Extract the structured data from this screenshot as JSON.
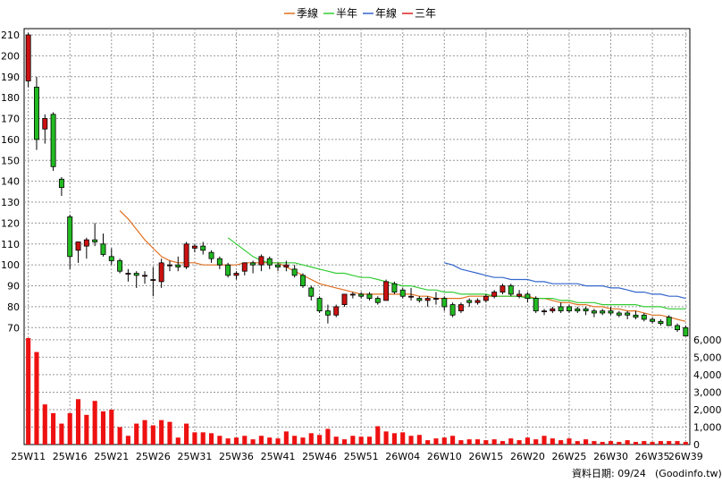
{
  "legend": [
    {
      "label": "季線",
      "color": "#e07020"
    },
    {
      "label": "半年",
      "color": "#33cc33"
    },
    {
      "label": "年線",
      "color": "#3366cc"
    },
    {
      "label": "三年",
      "color": "#dd2222"
    }
  ],
  "footer": {
    "date_label": "資料日期: 09/24",
    "source": "(Goodinfo.tw)"
  },
  "chart_data": {
    "type": "candlestick",
    "price_axis": {
      "range": [
        65,
        213
      ],
      "ticks": [
        70,
        80,
        90,
        100,
        110,
        120,
        130,
        140,
        150,
        160,
        170,
        180,
        190,
        200,
        210
      ]
    },
    "volume_axis": {
      "range": [
        0,
        6200
      ],
      "ticks": [
        0,
        1000,
        2000,
        3000,
        4000,
        5000,
        6000
      ],
      "tick_labels": [
        "0",
        "1,000",
        "2,000",
        "3,000",
        "4,000",
        "5,000",
        "6,000"
      ]
    },
    "x_tick_labels": [
      {
        "label": "25W11",
        "index": 0
      },
      {
        "label": "25W16",
        "index": 5
      },
      {
        "label": "25W21",
        "index": 10
      },
      {
        "label": "25W26",
        "index": 15
      },
      {
        "label": "25W31",
        "index": 20
      },
      {
        "label": "25W36",
        "index": 25
      },
      {
        "label": "25W41",
        "index": 30
      },
      {
        "label": "25W46",
        "index": 35
      },
      {
        "label": "25W51",
        "index": 40
      },
      {
        "label": "26W04",
        "index": 45
      },
      {
        "label": "26W10",
        "index": 50
      },
      {
        "label": "26W15",
        "index": 55
      },
      {
        "label": "26W20",
        "index": 60
      },
      {
        "label": "26W25",
        "index": 65
      },
      {
        "label": "26W30",
        "index": 70
      },
      {
        "label": "26W35",
        "index": 75
      },
      {
        "label": "26W39",
        "index": 79
      }
    ],
    "grid": true,
    "candles": [
      [
        188,
        211,
        185,
        210
      ],
      [
        185,
        190,
        155,
        160
      ],
      [
        165,
        172,
        158,
        170
      ],
      [
        172,
        173,
        145,
        147
      ],
      [
        141,
        142,
        133,
        137
      ],
      [
        123,
        124,
        98,
        104
      ],
      [
        107,
        111,
        101,
        111
      ],
      [
        109,
        113,
        103,
        112
      ],
      [
        112,
        120,
        109,
        111
      ],
      [
        110,
        115,
        104,
        105
      ],
      [
        104,
        108,
        100,
        102
      ],
      [
        102,
        103,
        96,
        97
      ],
      [
        96,
        98,
        92,
        96
      ],
      [
        96,
        97,
        89,
        95
      ],
      [
        95,
        97,
        91,
        95
      ],
      [
        93,
        99,
        85,
        93
      ],
      [
        92,
        103,
        89,
        101
      ],
      [
        100,
        102,
        97,
        100
      ],
      [
        100,
        104,
        97,
        99
      ],
      [
        99,
        111,
        98,
        110
      ],
      [
        108,
        110,
        106,
        109
      ],
      [
        109,
        111,
        105,
        107
      ],
      [
        106,
        107,
        101,
        103
      ],
      [
        103,
        104,
        98,
        100
      ],
      [
        100,
        101,
        94,
        95
      ],
      [
        95,
        97,
        93,
        96
      ],
      [
        97,
        101,
        95,
        101
      ],
      [
        101,
        102,
        96,
        100
      ],
      [
        100,
        105,
        97,
        104
      ],
      [
        103,
        104,
        98,
        100
      ],
      [
        100,
        101,
        97,
        99
      ],
      [
        99,
        102,
        97,
        100
      ],
      [
        98,
        100,
        94,
        95
      ],
      [
        95,
        96,
        89,
        90
      ],
      [
        89,
        90,
        83,
        85
      ],
      [
        84,
        85,
        77,
        78
      ],
      [
        78,
        81,
        72,
        76
      ],
      [
        76,
        81,
        75,
        80
      ],
      [
        81,
        86,
        80,
        86
      ],
      [
        86,
        87,
        84,
        86
      ],
      [
        86,
        87,
        84,
        85
      ],
      [
        86,
        87,
        83,
        84
      ],
      [
        84,
        85,
        81,
        82
      ],
      [
        83,
        93,
        83,
        92
      ],
      [
        91,
        92,
        86,
        87
      ],
      [
        88,
        89,
        84,
        85
      ],
      [
        85,
        89,
        83,
        85
      ],
      [
        84,
        85,
        82,
        83
      ],
      [
        83,
        85,
        80,
        84
      ],
      [
        84,
        87,
        81,
        84
      ],
      [
        84,
        85,
        78,
        80
      ],
      [
        81,
        82,
        75,
        76
      ],
      [
        78,
        82,
        77,
        81
      ],
      [
        83,
        84,
        80,
        82
      ],
      [
        82,
        84,
        81,
        83
      ],
      [
        83,
        86,
        82,
        85
      ],
      [
        85,
        88,
        84,
        87
      ],
      [
        87,
        91,
        86,
        90
      ],
      [
        90,
        91,
        85,
        86
      ],
      [
        85,
        88,
        84,
        86
      ],
      [
        86,
        87,
        82,
        84
      ],
      [
        84,
        85,
        77,
        78
      ],
      [
        78,
        79,
        76,
        78
      ],
      [
        78,
        80,
        77,
        79
      ],
      [
        80,
        82,
        77,
        78
      ],
      [
        80,
        81,
        77,
        78
      ],
      [
        79,
        80,
        77,
        78
      ],
      [
        79,
        80,
        76,
        78
      ],
      [
        78,
        79,
        75,
        77
      ],
      [
        78,
        79,
        76,
        77
      ],
      [
        78,
        80,
        76,
        77
      ],
      [
        77,
        78,
        75,
        76
      ],
      [
        77,
        78,
        74,
        76
      ],
      [
        76,
        78,
        74,
        75
      ],
      [
        76,
        77,
        73,
        74
      ],
      [
        74,
        75,
        72,
        73
      ],
      [
        73,
        74,
        71,
        72
      ],
      [
        75,
        76,
        71,
        71
      ],
      [
        71,
        72,
        68,
        69
      ],
      [
        70,
        71,
        66,
        66
      ]
    ],
    "volume": [
      6100,
      5300,
      2300,
      1800,
      1200,
      1800,
      2600,
      1700,
      2500,
      1900,
      2000,
      1000,
      500,
      1200,
      1400,
      1100,
      1400,
      1300,
      400,
      1200,
      700,
      700,
      650,
      500,
      350,
      400,
      500,
      300,
      500,
      400,
      350,
      750,
      500,
      400,
      650,
      550,
      900,
      450,
      300,
      500,
      450,
      450,
      1050,
      750,
      650,
      700,
      500,
      550,
      250,
      350,
      400,
      500,
      250,
      300,
      300,
      250,
      300,
      200,
      350,
      250,
      400,
      300,
      500,
      350,
      250,
      350,
      200,
      300,
      200,
      150,
      200,
      150,
      250,
      150,
      200,
      150,
      200,
      200,
      200,
      150
    ],
    "series": [
      {
        "name": "季線",
        "start": 11,
        "values": [
          126,
          122,
          117,
          112,
          108,
          104,
          102,
          101,
          101,
          101,
          100,
          100,
          100,
          100,
          100,
          101,
          101,
          101,
          101,
          101,
          99,
          97,
          95,
          93,
          91,
          90,
          89,
          88,
          87,
          86,
          86,
          86,
          86,
          86,
          86,
          86,
          85,
          85,
          84,
          84,
          84,
          84,
          85,
          85,
          85,
          85,
          85,
          85,
          85,
          85,
          84,
          84,
          83,
          82,
          82,
          81,
          81,
          80,
          80,
          79,
          79,
          78,
          78,
          77,
          76,
          76,
          75,
          74,
          73
        ]
      },
      {
        "name": "半年",
        "start": 24,
        "values": [
          113,
          110,
          107,
          104,
          102,
          101,
          101,
          101,
          101,
          100,
          99,
          98,
          97,
          96,
          96,
          95,
          94,
          94,
          93,
          92,
          91,
          90,
          90,
          89,
          88,
          88,
          87,
          87,
          86,
          86,
          86,
          86,
          85,
          85,
          85,
          85,
          84,
          84,
          84,
          84,
          83,
          83,
          82,
          82,
          82,
          81,
          81,
          81,
          81,
          81,
          80,
          80,
          80,
          79,
          79,
          79
        ]
      },
      {
        "name": "年線",
        "start": 50,
        "values": [
          101,
          100,
          98,
          97,
          96,
          95,
          94,
          94,
          93,
          93,
          93,
          92,
          92,
          91,
          91,
          91,
          91,
          90,
          90,
          90,
          89,
          89,
          88,
          87,
          87,
          86,
          86,
          85,
          85,
          84
        ]
      }
    ]
  }
}
